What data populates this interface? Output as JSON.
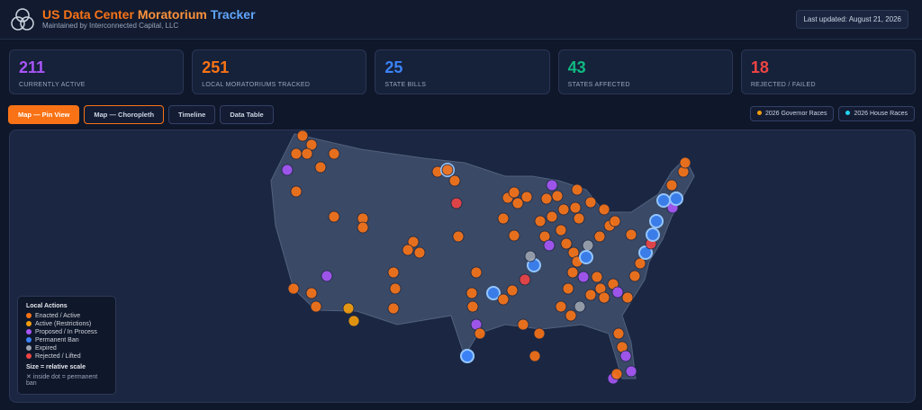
{
  "header": {
    "title_parts": [
      {
        "text": "US Data Center ",
        "color": "#f97316"
      },
      {
        "text": "Moratorium",
        "color": "#fb923c"
      },
      {
        "text": " Tracker",
        "color": "#60a5fa"
      }
    ],
    "subtitle": "Maintained by Interconnected Capital, LLC",
    "last_updated": "Last updated: August 21, 2026"
  },
  "stats": [
    {
      "value": 211,
      "label": "CURRENTLY ACTIVE",
      "color": "#a855f7"
    },
    {
      "value": 251,
      "label": "LOCAL MORATORIUMS TRACKED",
      "color": "#f97316"
    },
    {
      "value": 25,
      "label": "STATE BILLS",
      "color": "#3b82f6"
    },
    {
      "value": 43,
      "label": "STATES AFFECTED",
      "color": "#10b981"
    },
    {
      "value": 18,
      "label": "REJECTED / FAILED",
      "color": "#ef4444"
    }
  ],
  "tabs": [
    "Map — Pin View",
    "Map — Choropleth",
    "Timeline",
    "Data Table"
  ],
  "toggles": [
    {
      "label": "2026 Governor Races",
      "color": "#f59e0b"
    },
    {
      "label": "2026 House Races",
      "color": "#22d3ee"
    }
  ],
  "legend": {
    "title": "Local Actions",
    "items": [
      {
        "label": "Enacted / Active",
        "color": "#f97316"
      },
      {
        "label": "Active (Restrictions)",
        "color": "#f59e0b"
      },
      {
        "label": "Proposed / In Process",
        "color": "#a855f7"
      },
      {
        "label": "Permanent Ban",
        "color": "#3b82f6"
      },
      {
        "label": "Expired",
        "color": "#9ca3af"
      },
      {
        "label": "Rejected / Lifted",
        "color": "#ef4444"
      }
    ],
    "size_note": "Size = relative scale",
    "ban_note": "✕ inside dot = permanent ban"
  }
}
